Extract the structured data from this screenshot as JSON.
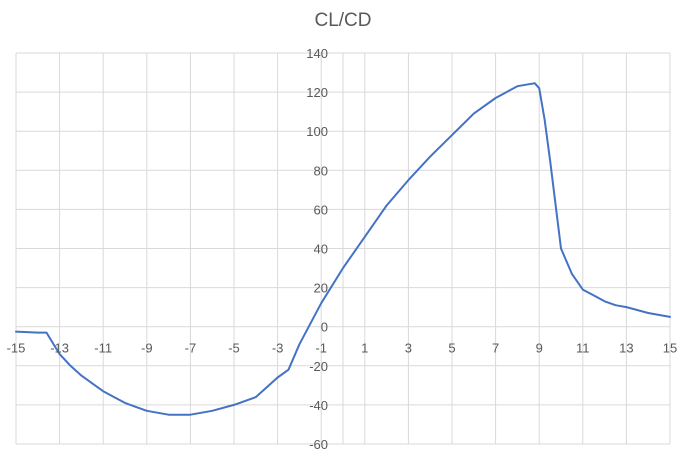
{
  "chart_data": {
    "type": "line",
    "title": "CL/CD",
    "xlabel": "",
    "ylabel": "",
    "xlim": [
      -15,
      15
    ],
    "ylim": [
      -60,
      140
    ],
    "x_ticks": [
      "-15",
      "-13",
      "-11",
      "-9",
      "-7",
      "-5",
      "-3",
      "-1",
      "1",
      "3",
      "5",
      "7",
      "9",
      "11",
      "13",
      "15"
    ],
    "y_ticks": [
      "140",
      "120",
      "100",
      "80",
      "60",
      "40",
      "20",
      "0",
      "-20",
      "-40",
      "-60"
    ],
    "grid": true,
    "legend": "none",
    "colors": {
      "series": "#4472c4",
      "grid": "#d9d9d9",
      "text": "#595959"
    },
    "series": [
      {
        "x": [
          -15,
          -14,
          -13.6,
          -13,
          -12.5,
          -12,
          -11.5,
          -11,
          -10.5,
          -10,
          -9.5,
          -9,
          -8,
          -7,
          -6,
          -5,
          -4,
          -3,
          -2.5,
          -2,
          -1,
          0,
          1,
          2,
          3,
          4,
          5,
          6,
          7,
          7.5,
          8,
          8.5,
          8.8,
          9,
          9.25,
          9.5,
          10,
          10.5,
          11,
          11.5,
          12,
          12.5,
          13,
          14,
          15
        ],
        "y": [
          -2.5,
          -3,
          -3,
          -14,
          -20,
          -25,
          -29,
          -33,
          -36,
          -39,
          -41,
          -43,
          -45,
          -45,
          -43,
          -40,
          -36,
          -26,
          -22,
          -9,
          12,
          30,
          46,
          62,
          75,
          87,
          98,
          109,
          117,
          120,
          123,
          124,
          124.5,
          122,
          106,
          85,
          40,
          27,
          19,
          16,
          13,
          11,
          10,
          7,
          5
        ]
      }
    ]
  }
}
